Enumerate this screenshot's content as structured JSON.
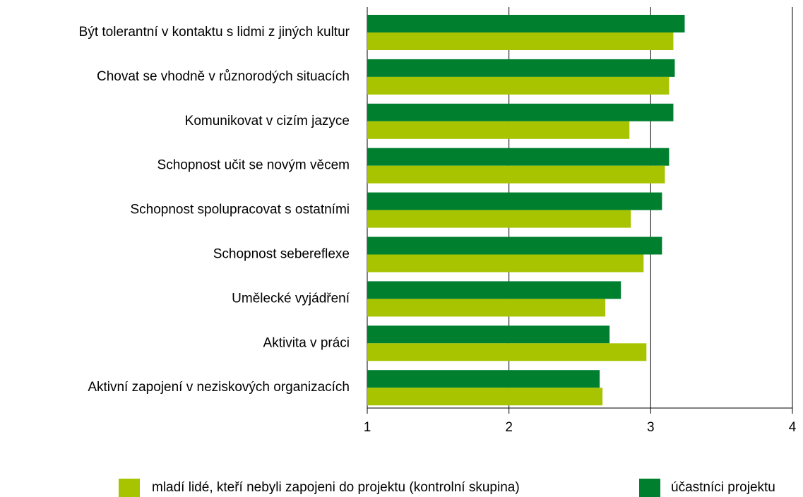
{
  "chart_data": {
    "type": "bar",
    "orientation": "horizontal",
    "categories": [
      "Být tolerantní v kontaktu s lidmi z jiných kultur",
      "Chovat se vhodně v různorodých situacích",
      "Komunikovat v cizím jazyce",
      "Schopnost učit se novým věcem",
      "Schopnost spolupracovat s ostatními",
      "Schopnost sebereflexe",
      "Umělecké vyjádření",
      "Aktivita v práci",
      "Aktivní zapojení v neziskových organizacích"
    ],
    "series": [
      {
        "name": "mladí lidé, kteří nebyli zapojeni do projektu (kontrolní skupina)",
        "color": "#a8c400",
        "values": [
          3.16,
          3.13,
          2.85,
          3.1,
          2.86,
          2.95,
          2.68,
          2.97,
          2.66
        ]
      },
      {
        "name": "účastníci projektu",
        "color": "#00802f",
        "values": [
          3.24,
          3.17,
          3.16,
          3.13,
          3.08,
          3.08,
          2.79,
          2.71,
          2.64
        ]
      }
    ],
    "xlim": [
      1,
      4
    ],
    "xticks": [
      1,
      2,
      3,
      4
    ],
    "grid": true,
    "legend": "bottom"
  }
}
